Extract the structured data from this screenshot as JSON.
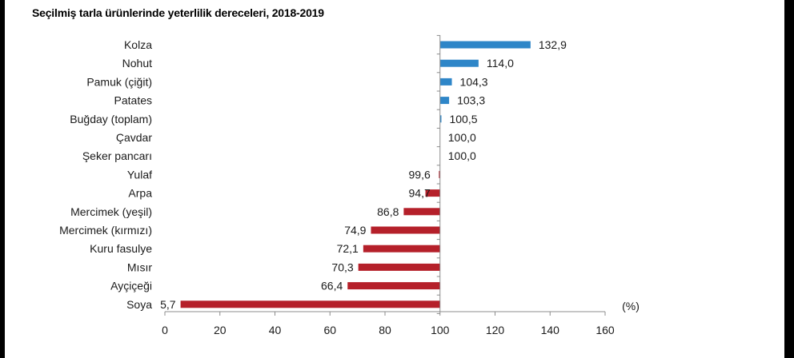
{
  "title": "Seçilmiş tarla ürünlerinde yeterlilik dereceleri, 2018-2019",
  "chart_data": {
    "type": "bar",
    "orientation": "horizontal",
    "title": "Seçilmiş tarla ürünlerinde yeterlilik dereceleri, 2018-2019",
    "unit_label": "(%)",
    "baseline": 100,
    "xlim": [
      0,
      160
    ],
    "xticks": [
      0,
      20,
      40,
      60,
      80,
      100,
      120,
      140,
      160
    ],
    "grid": false,
    "categories": [
      "Kolza",
      "Nohut",
      "Pamuk (çiğit)",
      "Patates",
      "Buğday (toplam)",
      "Çavdar",
      "Şeker pancarı",
      "Yulaf",
      "Arpa",
      "Mercimek (yeşil)",
      "Mercimek (kırmızı)",
      "Kuru fasulye",
      "Mısır",
      "Ayçiçeği",
      "Soya"
    ],
    "values": [
      132.9,
      114.0,
      104.3,
      103.3,
      100.5,
      100.0,
      100.0,
      99.6,
      94.7,
      86.8,
      74.9,
      72.1,
      70.3,
      66.4,
      5.7
    ],
    "value_labels": [
      "132,9",
      "114,0",
      "104,3",
      "103,3",
      "100,5",
      "100,0",
      "100,0",
      "99,6",
      "94,7",
      "86,8",
      "74,9",
      "72,1",
      "70,3",
      "66,4",
      "5,7"
    ],
    "colors": {
      "above": "#2e86c8",
      "below": "#b5202a",
      "axis": "#8c8c8c"
    }
  }
}
